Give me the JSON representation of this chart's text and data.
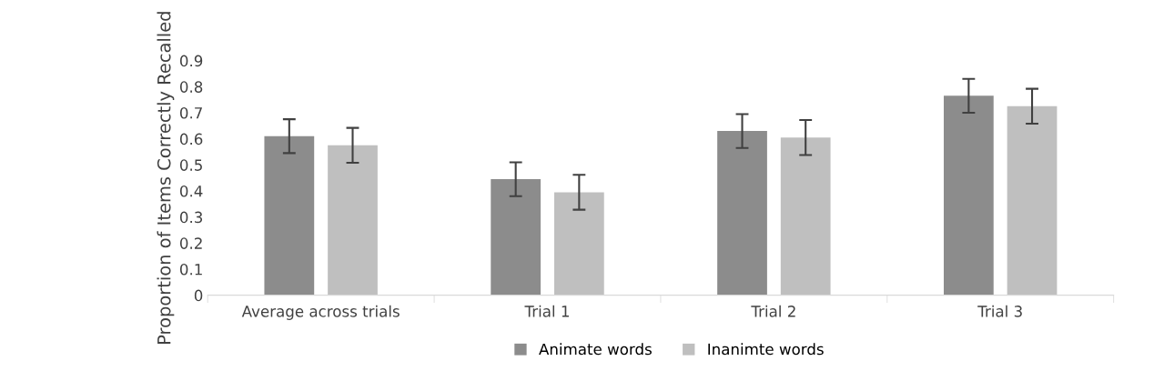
{
  "chart_data": {
    "type": "bar",
    "ylabel": "Proportion of Items Correctly Recalled",
    "categories": [
      "Average across trials",
      "Trial 1",
      "Trial 2",
      "Trial 3"
    ],
    "series": [
      {
        "name": "Animate words",
        "color": "#8c8c8c",
        "values": [
          0.61,
          0.445,
          0.63,
          0.765
        ],
        "errors": [
          0.065,
          0.065,
          0.065,
          0.065
        ]
      },
      {
        "name": "Inanimte words",
        "color": "#bfbfbf",
        "values": [
          0.575,
          0.395,
          0.605,
          0.725
        ],
        "errors": [
          0.067,
          0.067,
          0.067,
          0.067
        ]
      }
    ],
    "ylim": [
      0,
      0.9
    ],
    "yticks": [
      0,
      0.1,
      0.2,
      0.3,
      0.4,
      0.5,
      0.6,
      0.7,
      0.8,
      0.9
    ],
    "grid": false,
    "legend": "bottom"
  }
}
